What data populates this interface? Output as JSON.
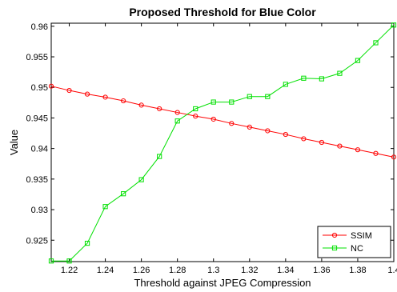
{
  "chart_data": {
    "type": "line",
    "title": "Proposed Threshold for Blue Color",
    "xlabel": "Threshold against JPEG Compression",
    "ylabel": "Value",
    "xlim": [
      1.21,
      1.4
    ],
    "ylim": [
      0.9215,
      0.9605
    ],
    "xticks": [
      1.22,
      1.24,
      1.26,
      1.28,
      1.3,
      1.32,
      1.34,
      1.36,
      1.38,
      1.4
    ],
    "xtick_labels": [
      "1.22",
      "1.24",
      "1.26",
      "1.28",
      "1.3",
      "1.32",
      "1.34",
      "1.36",
      "1.38",
      "1.4"
    ],
    "yticks": [
      0.925,
      0.93,
      0.935,
      0.94,
      0.945,
      0.95,
      0.955,
      0.96
    ],
    "ytick_labels": [
      "0.925",
      "0.93",
      "0.935",
      "0.94",
      "0.945",
      "0.95",
      "0.955",
      "0.96"
    ],
    "grid": false,
    "legend_position": "bottom-right",
    "x": [
      1.21,
      1.22,
      1.23,
      1.24,
      1.25,
      1.26,
      1.27,
      1.28,
      1.29,
      1.3,
      1.31,
      1.32,
      1.33,
      1.34,
      1.35,
      1.36,
      1.37,
      1.38,
      1.39,
      1.4
    ],
    "series": [
      {
        "name": "SSIM",
        "color": "#ff0000",
        "marker": "circle",
        "values": [
          0.9502,
          0.9495,
          0.9489,
          0.9484,
          0.9478,
          0.9471,
          0.9465,
          0.9459,
          0.9453,
          0.9448,
          0.9441,
          0.9435,
          0.9429,
          0.9423,
          0.9416,
          0.941,
          0.9404,
          0.9398,
          0.9392,
          0.9386
        ]
      },
      {
        "name": "NC",
        "color": "#00e000",
        "marker": "square",
        "values": [
          0.9216,
          0.9216,
          0.9245,
          0.9305,
          0.9326,
          0.9349,
          0.9387,
          0.9445,
          0.9465,
          0.9476,
          0.9476,
          0.9485,
          0.9485,
          0.9505,
          0.9515,
          0.9514,
          0.9523,
          0.9544,
          0.9573,
          0.9602
        ]
      }
    ]
  }
}
